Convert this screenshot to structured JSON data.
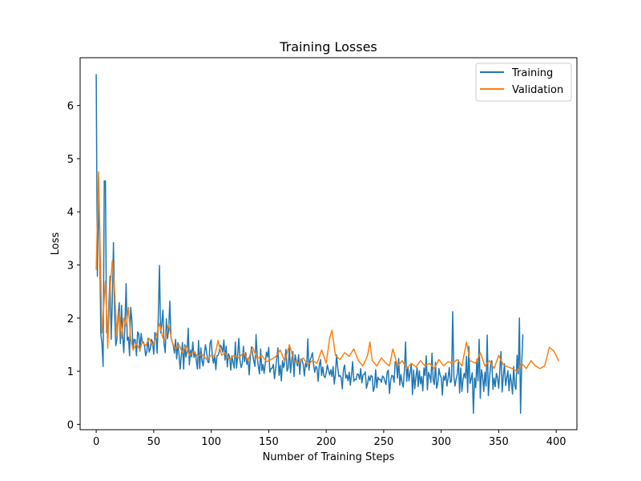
{
  "chart_data": {
    "type": "line",
    "title": "Training Losses",
    "xlabel": "Number of Training Steps",
    "ylabel": "Loss",
    "xlim": [
      -14,
      418
    ],
    "ylim": [
      -0.1,
      6.9
    ],
    "xticks": [
      0,
      50,
      100,
      150,
      200,
      250,
      300,
      350,
      400
    ],
    "yticks": [
      0,
      1,
      2,
      3,
      4,
      5,
      6
    ],
    "grid": false,
    "legend": "top-right",
    "x_step": 1,
    "series": [
      {
        "name": "Training",
        "color": "#1f77b4",
        "values": [
          6.58,
          2.79,
          4.3,
          3.45,
          1.7,
          1.52,
          1.09,
          4.58,
          4.58,
          1.73,
          1.69,
          2.25,
          2.79,
          1.6,
          2.3,
          3.42,
          2.11,
          1.48,
          1.6,
          2.03,
          2.29,
          1.52,
          2.24,
          1.66,
          1.35,
          1.88,
          2.65,
          1.58,
          1.64,
          1.29,
          2.2,
          1.96,
          1.44,
          1.6,
          1.59,
          1.29,
          1.74,
          1.71,
          1.38,
          1.71,
          1.55,
          1.55,
          1.48,
          1.29,
          1.37,
          1.62,
          1.36,
          1.42,
          1.6,
          1.55,
          1.32,
          1.73,
          1.66,
          1.34,
          2.04,
          2.99,
          1.72,
          1.88,
          2.15,
          1.52,
          1.35,
          1.99,
          1.61,
          1.79,
          2.32,
          1.64,
          1.55,
          1.49,
          1.34,
          1.6,
          1.23,
          1.54,
          1.31,
          1.04,
          1.3,
          1.54,
          1.04,
          1.5,
          1.27,
          1.37,
          1.81,
          1.12,
          1.4,
          1.27,
          1.55,
          1.26,
          1.36,
          1.21,
          1.04,
          1.58,
          1.05,
          1.44,
          1.2,
          1.1,
          1.32,
          1.5,
          1.36,
          1.18,
          1.16,
          1.53,
          1.59,
          1.27,
          1.15,
          1.31,
          1.03,
          1.29,
          1.3,
          1.37,
          1.49,
          1.45,
          1.36,
          1.59,
          1.21,
          1.47,
          1.08,
          1.33,
          1.27,
          1.02,
          1.29,
          1.17,
          1.06,
          1.55,
          1.06,
          1.3,
          1.62,
          1.21,
          1.07,
          1.14,
          1.47,
          1.18,
          1.35,
          1.13,
          1.24,
          0.93,
          1.27,
          1.46,
          1.32,
          1.2,
          1.09,
          1.69,
          1.27,
          1.09,
          0.95,
          1.42,
          1.01,
          1.13,
          0.96,
          1.15,
          1.36,
          1.27,
          1.45,
          0.98,
          1.05,
          1.06,
          1.13,
          0.86,
          1.04,
          1.24,
          1.44,
          0.92,
          1.11,
          0.82,
          1.2,
          1.07,
          1.18,
          1.41,
          1.0,
          1.07,
          1.43,
          0.97,
          1.2,
          1.37,
          0.9,
          1.31,
          1.19,
          1.1,
          1.31,
          0.94,
          1.23,
          1.21,
          1.13,
          0.91,
          1.15,
          1.08,
          1.61,
          1.02,
          1.21,
          1.27,
          1.35,
          1.12,
          0.98,
          1.09,
          1.06,
          0.81,
          1.11,
          1.22,
          0.92,
          1.08,
          0.91,
          0.88,
          0.97,
          1.12,
          1.02,
          0.93,
          1.03,
          0.9,
          1.09,
          0.76,
          0.94,
          1.31,
          1.07,
          0.9,
          0.92,
          0.88,
          0.67,
          1.03,
          1.12,
          0.87,
          0.93,
          0.82,
          0.98,
          0.74,
          0.94,
          1.18,
          0.81,
          0.85,
          0.84,
          0.95,
          0.94,
          0.85,
          1.05,
          0.78,
          0.93,
          0.94,
          0.99,
          0.68,
          0.77,
          0.91,
          0.82,
          0.92,
          0.9,
          0.62,
          0.71,
          1.03,
          0.69,
          0.89,
          0.84,
          0.85,
          0.79,
          0.91,
          0.89,
          0.81,
          0.75,
          0.98,
          1.02,
          0.58,
          0.82,
          0.92,
          0.91,
          0.79,
          1.18,
          1.16,
          0.87,
          1.24,
          0.74,
          0.94,
          0.78,
          0.7,
          1.02,
          1.55,
          0.81,
          1.08,
          0.82,
          0.99,
          1.13,
          0.56,
          1.02,
          0.67,
          0.89,
          1.07,
          0.71,
          1.01,
          0.76,
          0.9,
          0.63,
          1.06,
          0.92,
          1.29,
          0.65,
          0.98,
          0.91,
          0.79,
          1.34,
          0.83,
          0.75,
          1.17,
          0.68,
          0.77,
          1.05,
          0.93,
          0.88,
          0.55,
          0.91,
          0.83,
          0.97,
          0.72,
          0.87,
          1.07,
          0.79,
          0.82,
          2.12,
          0.91,
          0.72,
          0.85,
          0.95,
          1.21,
          0.59,
          1.06,
          0.62,
          0.85,
          0.96,
          0.87,
          1.28,
          0.6,
          1.47,
          0.77,
          0.85,
          0.97,
          0.21,
          0.87,
          0.69,
          1.22,
          0.82,
          1.6,
          0.49,
          1.03,
          0.9,
          0.62,
          0.98,
          0.72,
          1.68,
          0.54,
          0.85,
          1.13,
          1.2,
          0.66,
          0.87,
          0.71,
          0.96,
          0.88,
          0.68,
          1.03,
          1.37,
          0.61,
          0.91,
          1.14,
          0.73,
          0.88,
          1.01,
          0.63,
          0.94,
          0.8,
          0.57,
          1.09,
          0.73,
          0.66,
          1.3,
          0.95,
          2.0,
          0.21,
          1.15,
          1.68
        ]
      },
      {
        "name": "Validation",
        "color": "#ff7f0e",
        "points": [
          [
            0,
            2.92
          ],
          [
            2,
            4.75
          ],
          [
            5,
            1.72
          ],
          [
            8,
            2.7
          ],
          [
            10,
            1.43
          ],
          [
            12,
            2.55
          ],
          [
            14,
            3.08
          ],
          [
            16,
            2.5
          ],
          [
            18,
            1.67
          ],
          [
            20,
            2.12
          ],
          [
            22,
            1.62
          ],
          [
            24,
            2.0
          ],
          [
            26,
            1.85
          ],
          [
            28,
            2.2
          ],
          [
            30,
            1.62
          ],
          [
            32,
            1.4
          ],
          [
            35,
            1.52
          ],
          [
            38,
            1.4
          ],
          [
            40,
            1.55
          ],
          [
            43,
            1.48
          ],
          [
            46,
            1.62
          ],
          [
            49,
            1.48
          ],
          [
            52,
            1.65
          ],
          [
            55,
            1.9
          ],
          [
            58,
            1.62
          ],
          [
            60,
            1.6
          ],
          [
            63,
            1.88
          ],
          [
            66,
            1.55
          ],
          [
            69,
            1.42
          ],
          [
            72,
            1.5
          ],
          [
            75,
            1.35
          ],
          [
            78,
            1.48
          ],
          [
            81,
            1.3
          ],
          [
            85,
            1.37
          ],
          [
            88,
            1.28
          ],
          [
            92,
            1.32
          ],
          [
            96,
            1.22
          ],
          [
            100,
            1.3
          ],
          [
            103,
            1.28
          ],
          [
            106,
            1.58
          ],
          [
            109,
            1.3
          ],
          [
            112,
            1.35
          ],
          [
            116,
            1.22
          ],
          [
            120,
            1.3
          ],
          [
            124,
            1.25
          ],
          [
            128,
            1.35
          ],
          [
            132,
            1.2
          ],
          [
            136,
            1.45
          ],
          [
            140,
            1.23
          ],
          [
            144,
            1.3
          ],
          [
            148,
            1.18
          ],
          [
            152,
            1.22
          ],
          [
            156,
            1.27
          ],
          [
            160,
            1.4
          ],
          [
            164,
            1.18
          ],
          [
            168,
            1.5
          ],
          [
            172,
            1.2
          ],
          [
            176,
            1.15
          ],
          [
            180,
            1.25
          ],
          [
            184,
            1.12
          ],
          [
            188,
            1.2
          ],
          [
            192,
            1.15
          ],
          [
            196,
            1.4
          ],
          [
            200,
            1.15
          ],
          [
            203,
            1.62
          ],
          [
            205,
            1.77
          ],
          [
            208,
            1.3
          ],
          [
            212,
            1.22
          ],
          [
            216,
            1.35
          ],
          [
            220,
            1.28
          ],
          [
            224,
            1.42
          ],
          [
            228,
            1.2
          ],
          [
            232,
            1.1
          ],
          [
            236,
            1.3
          ],
          [
            238,
            1.55
          ],
          [
            240,
            1.2
          ],
          [
            244,
            1.1
          ],
          [
            248,
            1.25
          ],
          [
            252,
            1.15
          ],
          [
            255,
            1.1
          ],
          [
            258,
            1.42
          ],
          [
            262,
            1.1
          ],
          [
            266,
            1.2
          ],
          [
            270,
            1.05
          ],
          [
            274,
            1.15
          ],
          [
            278,
            1.08
          ],
          [
            282,
            1.2
          ],
          [
            286,
            1.1
          ],
          [
            290,
            1.15
          ],
          [
            294,
            1.05
          ],
          [
            298,
            1.22
          ],
          [
            302,
            1.1
          ],
          [
            306,
            1.18
          ],
          [
            310,
            1.15
          ],
          [
            314,
            1.22
          ],
          [
            318,
            1.1
          ],
          [
            322,
            1.55
          ],
          [
            325,
            1.2
          ],
          [
            330,
            1.15
          ],
          [
            334,
            1.35
          ],
          [
            338,
            1.1
          ],
          [
            342,
            1.2
          ],
          [
            346,
            1.05
          ],
          [
            350,
            1.3
          ],
          [
            354,
            1.12
          ],
          [
            358,
            1.08
          ],
          [
            362,
            1.05
          ],
          [
            366,
            1.0
          ],
          [
            370,
            1.15
          ],
          [
            374,
            1.05
          ],
          [
            378,
            1.2
          ],
          [
            382,
            1.1
          ],
          [
            386,
            1.05
          ],
          [
            390,
            1.1
          ],
          [
            394,
            1.45
          ],
          [
            398,
            1.38
          ],
          [
            402,
            1.2
          ]
        ]
      }
    ]
  }
}
